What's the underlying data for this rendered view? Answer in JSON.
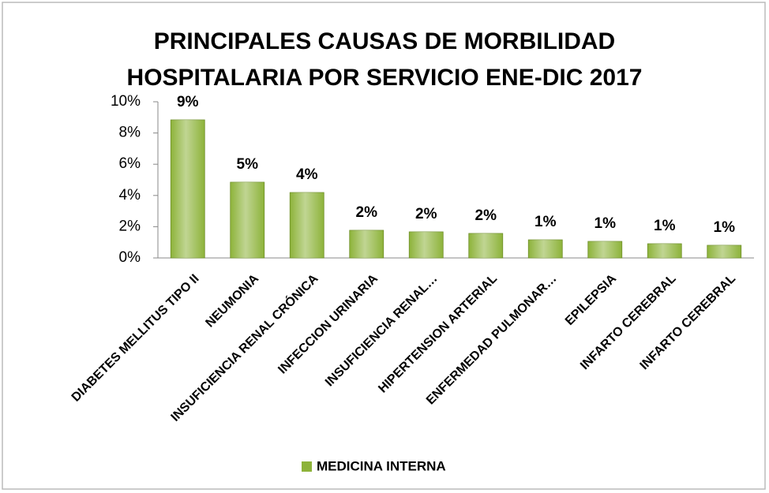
{
  "chart_data": {
    "type": "bar",
    "title": "PRINCIPALES CAUSAS DE MORBILIDAD HOSPITALARIA POR SERVICIO ENE-DIC 2017",
    "categories": [
      "DIABETES MELLITUS TIPO II",
      "NEUMONIA",
      "INSUFICIENCIA RENAL CRÓNICA",
      "INFECCION URINARIA",
      "INSUFICIENCIA RENAL…",
      "HIPERTENSION ARTERIAL",
      "ENFERMEDAD PULMONAR…",
      "EPILEPSIA",
      "INFARTO CEREBRAL",
      "INFARTO CEREBRAL"
    ],
    "series": [
      {
        "name": "MEDICINA INTERNA",
        "color": "#8db33a",
        "values": [
          8.84,
          4.85,
          4.19,
          1.77,
          1.67,
          1.57,
          1.16,
          1.06,
          0.91,
          0.81
        ],
        "value_labels": [
          "9%",
          "5%",
          "4%",
          "2%",
          "2%",
          "2%",
          "1%",
          "1%",
          "1%",
          "1%"
        ]
      }
    ],
    "ylim": [
      0,
      10
    ],
    "yticks": [
      {
        "value": 0,
        "label": "0%"
      },
      {
        "value": 2,
        "label": "2%"
      },
      {
        "value": 4,
        "label": "4%"
      },
      {
        "value": 6,
        "label": "6%"
      },
      {
        "value": 8,
        "label": "8%"
      },
      {
        "value": 10,
        "label": "10%"
      }
    ],
    "grid": false,
    "legend": "bottom"
  }
}
